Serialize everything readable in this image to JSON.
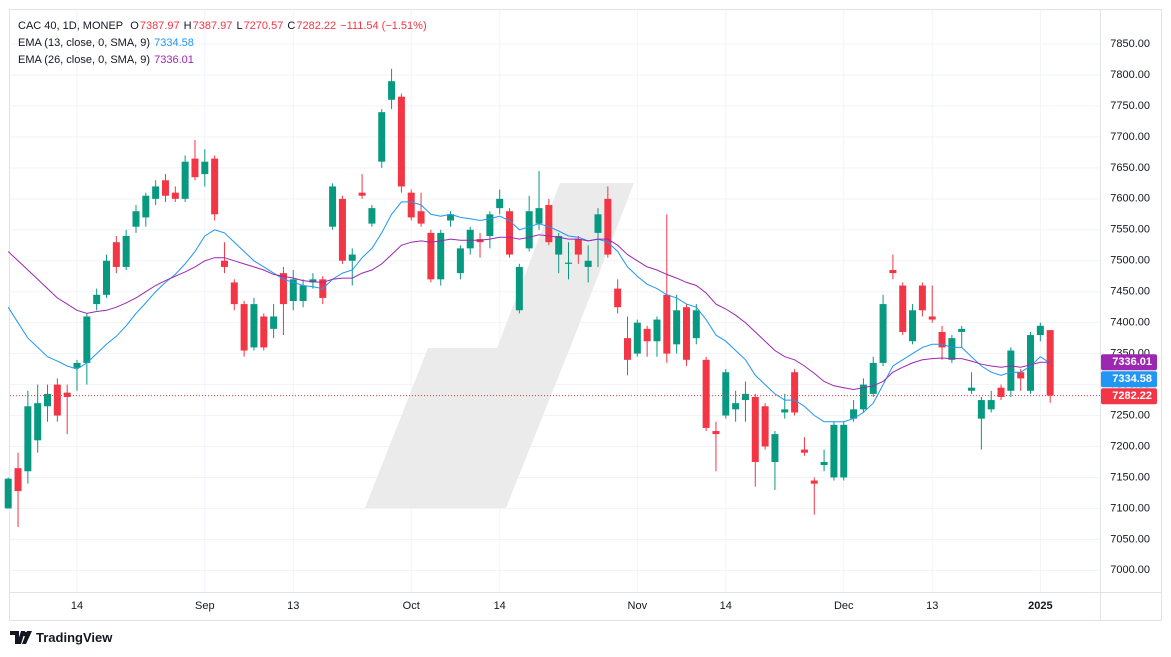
{
  "chart_data": {
    "type": "candlestick",
    "title": "CAC 40, 1D, MONEP",
    "ohlc_labels": [
      "O",
      "H",
      "L",
      "C"
    ],
    "change": "−111.54 (−1.51%)",
    "up_color": "#089981",
    "down_color": "#f23645",
    "categories": [
      null,
      null,
      null,
      null,
      null,
      null,
      null,
      "14",
      null,
      null,
      null,
      null,
      null,
      null,
      null,
      null,
      null,
      null,
      null,
      null,
      "Sep",
      null,
      null,
      null,
      null,
      null,
      null,
      null,
      null,
      "13",
      null,
      null,
      null,
      null,
      null,
      null,
      null,
      null,
      null,
      null,
      null,
      "Oct",
      null,
      null,
      null,
      null,
      null,
      null,
      null,
      null,
      "14",
      null,
      null,
      null,
      null,
      null,
      null,
      null,
      null,
      null,
      null,
      null,
      null,
      null,
      "Nov",
      null,
      null,
      null,
      null,
      null,
      null,
      null,
      null,
      "14",
      null,
      null,
      null,
      null,
      null,
      null,
      null,
      null,
      null,
      null,
      null,
      "Dec",
      null,
      null,
      null,
      null,
      null,
      null,
      null,
      null,
      "13",
      null,
      null,
      null,
      null,
      null,
      null,
      null,
      null,
      null,
      null,
      "2025",
      null
    ],
    "open": [
      7100,
      7165,
      7160,
      7210,
      7265,
      7300,
      7287,
      7327,
      7335,
      7430,
      7445,
      7530,
      7490,
      7555,
      7570,
      7600,
      7630,
      7610,
      7600,
      7665,
      7640,
      7665,
      7500,
      7465,
      7430,
      7360,
      7410,
      7390,
      7480,
      7435,
      7435,
      7465,
      7470,
      7555,
      7600,
      7500,
      7610,
      7560,
      7660,
      7760,
      7765,
      7610,
      7580,
      7545,
      7470,
      7565,
      7480,
      7520,
      7535,
      7540,
      7585,
      7580,
      7420,
      7520,
      7560,
      7590,
      7510,
      7495,
      7535,
      7490,
      7545,
      7600,
      7455,
      7375,
      7350,
      7390,
      7370,
      7445,
      7365,
      7425,
      7375,
      7340,
      7225,
      7250,
      7260,
      7275,
      7280,
      7265,
      7175,
      7255,
      7320,
      7195,
      7145,
      7170,
      7150,
      7150,
      7245,
      7260,
      7285,
      7335,
      7485,
      7460,
      7370,
      7460,
      7410,
      7385,
      7340,
      7385,
      7290,
      7245,
      7260,
      7295,
      7290,
      7320,
      7290,
      7380,
      7387.97
    ],
    "high": [
      7150,
      7190,
      7290,
      7300,
      7300,
      7310,
      7300,
      7340,
      7415,
      7455,
      7510,
      7540,
      7550,
      7590,
      7610,
      7630,
      7640,
      7620,
      7670,
      7695,
      7680,
      7670,
      7530,
      7470,
      7435,
      7440,
      7415,
      7430,
      7490,
      7485,
      7470,
      7480,
      7475,
      7625,
      7605,
      7520,
      7640,
      7590,
      7745,
      7810,
      7770,
      7615,
      7610,
      7550,
      7550,
      7580,
      7525,
      7555,
      7545,
      7580,
      7615,
      7585,
      7495,
      7605,
      7645,
      7600,
      7545,
      7530,
      7540,
      7525,
      7585,
      7620,
      7470,
      7410,
      7405,
      7395,
      7410,
      7575,
      7445,
      7430,
      7430,
      7345,
      7240,
      7325,
      7290,
      7305,
      7285,
      7270,
      7225,
      7285,
      7325,
      7215,
      7150,
      7195,
      7240,
      7240,
      7275,
      7310,
      7345,
      7445,
      7510,
      7465,
      7430,
      7465,
      7460,
      7395,
      7380,
      7395,
      7320,
      7280,
      7290,
      7300,
      7360,
      7325,
      7385,
      7400,
      7387.97
    ],
    "low": [
      7100,
      7070,
      7140,
      7190,
      7240,
      7240,
      7220,
      7290,
      7300,
      7420,
      7440,
      7480,
      7485,
      7545,
      7555,
      7590,
      7595,
      7595,
      7595,
      7630,
      7620,
      7565,
      7480,
      7420,
      7345,
      7355,
      7355,
      7375,
      7380,
      7420,
      7425,
      7455,
      7430,
      7550,
      7495,
      7460,
      7600,
      7555,
      7650,
      7745,
      7610,
      7565,
      7555,
      7465,
      7460,
      7555,
      7470,
      7510,
      7505,
      7520,
      7575,
      7505,
      7415,
      7515,
      7550,
      7525,
      7480,
      7470,
      7495,
      7465,
      7490,
      7505,
      7415,
      7315,
      7345,
      7345,
      7345,
      7335,
      7350,
      7330,
      7365,
      7225,
      7160,
      7245,
      7240,
      7240,
      7135,
      7195,
      7130,
      7245,
      7250,
      7185,
      7090,
      7160,
      7145,
      7145,
      7240,
      7255,
      7280,
      7330,
      7470,
      7380,
      7365,
      7410,
      7400,
      7340,
      7335,
      7360,
      7285,
      7195,
      7255,
      7275,
      7280,
      7290,
      7285,
      7370,
      7270.57
    ],
    "close": [
      7148,
      7128,
      7265,
      7270,
      7285,
      7250,
      7280,
      7335,
      7410,
      7445,
      7500,
      7490,
      7540,
      7580,
      7605,
      7620,
      7605,
      7600,
      7660,
      7635,
      7660,
      7575,
      7490,
      7430,
      7355,
      7430,
      7360,
      7410,
      7430,
      7470,
      7460,
      7470,
      7440,
      7620,
      7500,
      7510,
      7605,
      7585,
      7740,
      7790,
      7620,
      7570,
      7560,
      7470,
      7545,
      7575,
      7520,
      7550,
      7530,
      7575,
      7600,
      7510,
      7490,
      7580,
      7585,
      7530,
      7540,
      7497,
      7510,
      7500,
      7575,
      7510,
      7425,
      7340,
      7400,
      7370,
      7405,
      7350,
      7420,
      7340,
      7420,
      7230,
      7220,
      7320,
      7270,
      7285,
      7175,
      7200,
      7220,
      7260,
      7255,
      7190,
      7140,
      7175,
      7235,
      7235,
      7260,
      7300,
      7335,
      7430,
      7480,
      7385,
      7420,
      7420,
      7405,
      7360,
      7375,
      7390,
      7295,
      7275,
      7275,
      7280,
      7355,
      7310,
      7380,
      7395,
      7282.22
    ],
    "indicators": [
      {
        "name": "EMA (13, close, 0, SMA, 9)",
        "color": "#2196f3",
        "values": [
          7425,
          7400,
          7375,
          7360,
          7345,
          7338,
          7330,
          7325,
          7335,
          7350,
          7365,
          7378,
          7395,
          7415,
          7432,
          7450,
          7465,
          7478,
          7495,
          7515,
          7540,
          7550,
          7545,
          7530,
          7515,
          7500,
          7490,
          7480,
          7470,
          7465,
          7460,
          7458,
          7455,
          7470,
          7480,
          7485,
          7505,
          7520,
          7545,
          7575,
          7595,
          7595,
          7590,
          7575,
          7572,
          7575,
          7570,
          7568,
          7565,
          7568,
          7572,
          7565,
          7550,
          7555,
          7560,
          7555,
          7548,
          7540,
          7538,
          7532,
          7535,
          7530,
          7515,
          7490,
          7475,
          7462,
          7455,
          7445,
          7440,
          7430,
          7425,
          7405,
          7380,
          7370,
          7355,
          7340,
          7315,
          7300,
          7285,
          7275,
          7275,
          7265,
          7250,
          7240,
          7240,
          7240,
          7245,
          7255,
          7270,
          7300,
          7330,
          7340,
          7350,
          7360,
          7365,
          7365,
          7360,
          7360,
          7345,
          7330,
          7320,
          7315,
          7320,
          7320,
          7330,
          7345,
          7334.58
        ]
      },
      {
        "name": "EMA (26, close, 0, SMA, 9)",
        "color": "#9c27b0",
        "values": [
          7515,
          7500,
          7485,
          7470,
          7455,
          7440,
          7430,
          7420,
          7415,
          7418,
          7420,
          7425,
          7432,
          7440,
          7450,
          7460,
          7468,
          7475,
          7482,
          7490,
          7500,
          7505,
          7505,
          7500,
          7495,
          7490,
          7485,
          7478,
          7475,
          7472,
          7468,
          7466,
          7465,
          7470,
          7472,
          7472,
          7480,
          7485,
          7495,
          7510,
          7525,
          7530,
          7532,
          7530,
          7532,
          7535,
          7533,
          7533,
          7533,
          7535,
          7538,
          7538,
          7535,
          7538,
          7542,
          7540,
          7538,
          7535,
          7535,
          7532,
          7535,
          7535,
          7525,
          7510,
          7500,
          7490,
          7485,
          7478,
          7472,
          7465,
          7460,
          7448,
          7430,
          7422,
          7412,
          7400,
          7385,
          7370,
          7355,
          7345,
          7340,
          7330,
          7318,
          7305,
          7298,
          7295,
          7292,
          7295,
          7298,
          7305,
          7320,
          7328,
          7335,
          7340,
          7342,
          7343,
          7342,
          7342,
          7338,
          7333,
          7330,
          7328,
          7330,
          7328,
          7332,
          7336,
          7336.01
        ]
      }
    ],
    "ylim": [
      6965,
      7905
    ],
    "yticks": [
      {
        "value": 7000,
        "label": "7000.00"
      },
      {
        "value": 7050,
        "label": "7050.00"
      },
      {
        "value": 7100,
        "label": "7100.00"
      },
      {
        "value": 7150,
        "label": "7150.00"
      },
      {
        "value": 7200,
        "label": "7200.00"
      },
      {
        "value": 7250,
        "label": "7250.00"
      },
      {
        "value": 7300,
        "label": "7300.00"
      },
      {
        "value": 7350,
        "label": "7350.00"
      },
      {
        "value": 7400,
        "label": "7400.00"
      },
      {
        "value": 7450,
        "label": "7450.00"
      },
      {
        "value": 7500,
        "label": "7500.00"
      },
      {
        "value": 7550,
        "label": "7550.00"
      },
      {
        "value": 7600,
        "label": "7600.00"
      },
      {
        "value": 7650,
        "label": "7650.00"
      },
      {
        "value": 7700,
        "label": "7700.00"
      },
      {
        "value": 7750,
        "label": "7750.00"
      },
      {
        "value": 7800,
        "label": "7800.00"
      },
      {
        "value": 7850,
        "label": "7850.00"
      }
    ],
    "grid": true,
    "last_price_line": true
  },
  "brand": "TradingView"
}
